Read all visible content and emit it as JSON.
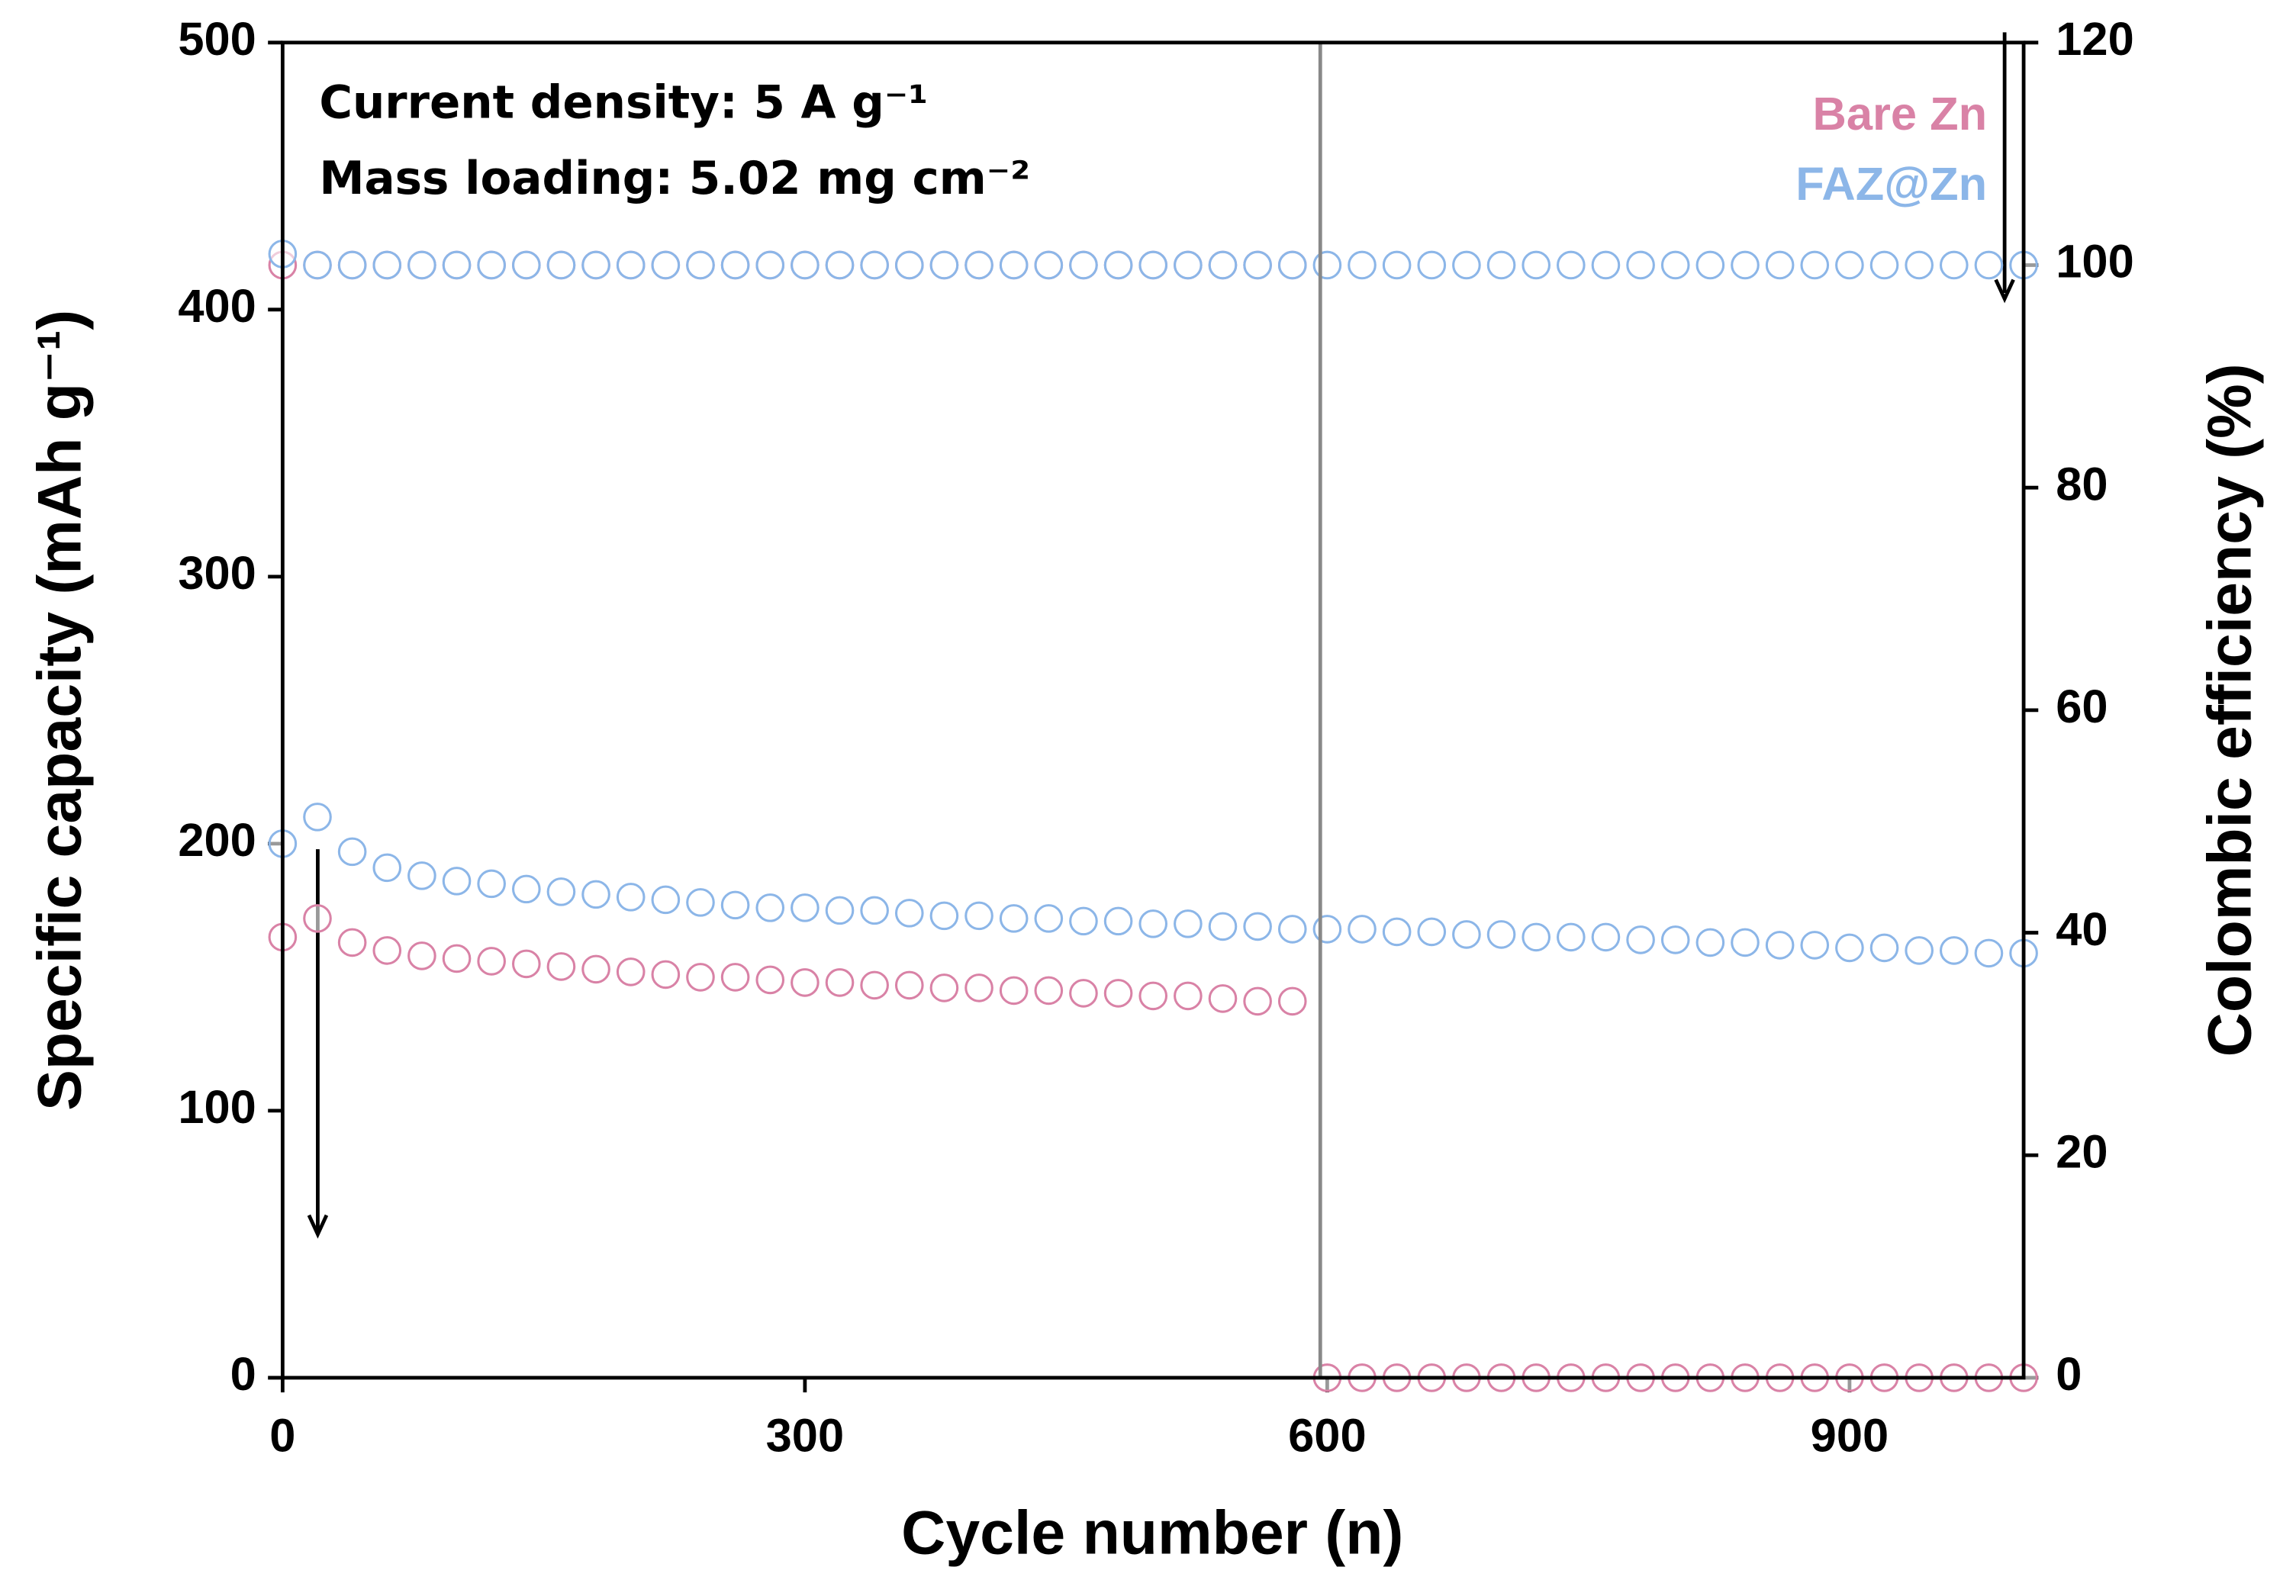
{
  "chart_data": {
    "type": "scatter",
    "annotations": [
      "Current density: 5 A g⁻¹",
      "Mass loading: 5.02 mg cm⁻²"
    ],
    "x_label": "Cycle number (n)",
    "y_label": "Specific capacity (mAh g⁻¹)",
    "y2_label": "Colombic efficiency (%)",
    "xlim": [
      0,
      1000
    ],
    "xticks": [
      0,
      300,
      600,
      900
    ],
    "ylim": [
      0,
      500
    ],
    "yticks": [
      0,
      100,
      200,
      300,
      400,
      500
    ],
    "y2lim": [
      0,
      120
    ],
    "y2ticks": [
      0,
      20,
      40,
      60,
      80,
      100,
      120
    ],
    "vline_x": 596,
    "x": [
      0,
      20,
      40,
      60,
      80,
      100,
      120,
      140,
      160,
      180,
      200,
      220,
      240,
      260,
      280,
      300,
      320,
      340,
      360,
      380,
      400,
      420,
      440,
      460,
      480,
      500,
      520,
      540,
      560,
      580,
      600,
      620,
      640,
      660,
      680,
      700,
      720,
      740,
      760,
      780,
      800,
      820,
      840,
      860,
      880,
      900,
      920,
      940,
      960,
      980,
      1000
    ],
    "series": [
      {
        "name": "Bare Zn",
        "color": "#d982a6",
        "values": [
          165,
          172,
          163,
          160,
          158,
          157,
          156,
          155,
          154,
          153,
          152,
          151,
          150,
          150,
          149,
          148,
          148,
          147,
          147,
          146,
          146,
          145,
          145,
          144,
          144,
          143,
          143,
          142,
          141,
          141,
          0,
          0,
          0,
          0,
          0,
          0,
          0,
          0,
          0,
          0,
          0,
          0,
          0,
          0,
          0,
          0,
          0,
          0,
          0,
          0,
          0
        ],
        "ce": [
          100,
          100,
          100,
          100,
          100,
          100,
          100,
          100,
          100,
          100,
          100,
          100,
          100,
          100,
          100,
          100,
          100,
          100,
          100,
          100,
          100,
          100,
          100,
          100,
          100,
          100,
          100,
          100,
          100,
          100,
          null,
          null,
          null,
          null,
          null,
          null,
          null,
          null,
          null,
          null,
          null,
          null,
          null,
          null,
          null,
          null,
          null,
          null,
          null,
          null,
          null
        ]
      },
      {
        "name": "FAZ@Zn",
        "color": "#8cb6e8",
        "values": [
          200,
          210,
          197,
          191,
          188,
          186,
          185,
          183,
          182,
          181,
          180,
          179,
          178,
          177,
          176,
          176,
          175,
          175,
          174,
          173,
          173,
          172,
          172,
          171,
          171,
          170,
          170,
          169,
          169,
          168,
          168,
          168,
          167,
          167,
          166,
          166,
          165,
          165,
          165,
          164,
          164,
          163,
          163,
          162,
          162,
          161,
          161,
          160,
          160,
          159,
          159
        ],
        "ce": [
          101,
          100,
          100,
          100,
          100,
          100,
          100,
          100,
          100,
          100,
          100,
          100,
          100,
          100,
          100,
          100,
          100,
          100,
          100,
          100,
          100,
          100,
          100,
          100,
          100,
          100,
          100,
          100,
          100,
          100,
          100,
          100,
          100,
          100,
          100,
          100,
          100,
          100,
          100,
          100,
          100,
          100,
          100,
          100,
          100,
          100,
          100,
          100,
          100,
          100,
          100
        ]
      }
    ]
  }
}
